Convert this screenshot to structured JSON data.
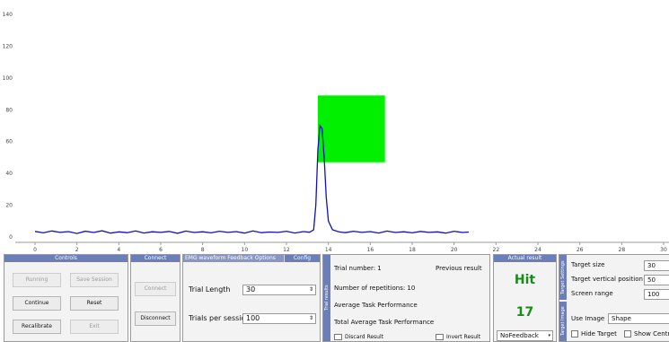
{
  "chart_data": {
    "type": "line",
    "title": "",
    "xlabel": "",
    "ylabel": "",
    "xlim": [
      -1,
      30
    ],
    "ylim": [
      -4,
      143
    ],
    "x_ticks": [
      0,
      2,
      4,
      6,
      8,
      10,
      12,
      14,
      16,
      18,
      20,
      22,
      24,
      26,
      28,
      30
    ],
    "y_ticks": [
      0,
      20,
      40,
      60,
      80,
      100,
      120,
      140
    ],
    "grid": false,
    "target": {
      "x_start": 13.5,
      "x_end": 16.7,
      "y_start": 47,
      "y_end": 89,
      "color": "#00f000"
    },
    "series": [
      {
        "color": "#1010c0",
        "x": [
          0,
          0.4,
          0.8,
          1.2,
          1.6,
          2.0,
          2.4,
          2.8,
          3.2,
          3.6,
          4.0,
          4.4,
          4.8,
          5.2,
          5.6,
          6.0,
          6.4,
          6.8,
          7.2,
          7.6,
          8.0,
          8.4,
          8.8,
          9.2,
          9.6,
          10.0,
          10.4,
          10.8,
          11.2,
          11.6,
          12.0,
          12.4,
          12.8,
          13.1,
          13.3,
          13.4,
          13.5,
          13.6,
          13.7,
          13.8,
          13.9,
          14.0,
          14.2,
          14.5,
          14.8,
          15.2,
          15.6,
          16.0,
          16.4,
          16.8,
          17.2,
          17.6,
          18.0,
          18.4,
          18.8,
          19.2,
          19.6,
          20.0,
          20.4,
          20.7
        ],
        "y": [
          3.5,
          2.6,
          3.8,
          2.9,
          3.4,
          2.2,
          3.6,
          2.8,
          3.9,
          2.4,
          3.2,
          2.7,
          3.8,
          2.5,
          3.3,
          2.9,
          3.5,
          2.3,
          3.7,
          2.8,
          3.3,
          2.6,
          3.6,
          2.9,
          3.4,
          2.4,
          3.8,
          2.7,
          3.1,
          2.9,
          3.6,
          2.5,
          3.4,
          3.0,
          4.5,
          20,
          55,
          70,
          68,
          50,
          25,
          10,
          4.5,
          3.2,
          2.7,
          3.6,
          2.9,
          3.4,
          2.5,
          3.7,
          2.8,
          3.3,
          2.6,
          3.5,
          2.9,
          3.2,
          2.4,
          3.6,
          2.8,
          3.1
        ]
      }
    ]
  },
  "controls": {
    "title": "Controls",
    "running": "Running",
    "save_session": "Save Session",
    "continue": "Continue",
    "reset": "Reset",
    "recalibrate": "Recalibrate",
    "exit": "Exit"
  },
  "connect": {
    "title": "Connect",
    "connect": "Connect",
    "disconnect": "Disconnect"
  },
  "emg": {
    "title": "EMG waveform Feedback Options",
    "config_tab": "Config",
    "trial_length_label": "Trial Length",
    "trial_length_value": "30",
    "trials_label": "Trials per session",
    "trials_value": "100"
  },
  "info": {
    "side_tab": "Trial results",
    "trial_number": "Trial number: 1",
    "previous_result": "Previous result",
    "repetitions": "Number of repetitions: 10",
    "avg_task": "Average Task Performance",
    "total_avg_task": "Total Average Task Performance",
    "discard_result": "Discard Result",
    "invert_result": "Invert Result"
  },
  "actual": {
    "title": "Actual result",
    "result": "Hit",
    "score": "17",
    "feedback_value": "NoFeedback",
    "result_color": "#1a8a1a"
  },
  "target_settings": {
    "side_tab": "Target Settings",
    "size_label": "Target size",
    "size_value": "30",
    "vpos_label": "Target vertical position",
    "vpos_value": "50",
    "range_label": "Screen range",
    "range_value": "100"
  },
  "target_image": {
    "side_tab": "Target Image",
    "use_image_label": "Use Image",
    "use_image_value": "Shape",
    "hide_target": "Hide Target",
    "show_centre": "Show Centre"
  }
}
